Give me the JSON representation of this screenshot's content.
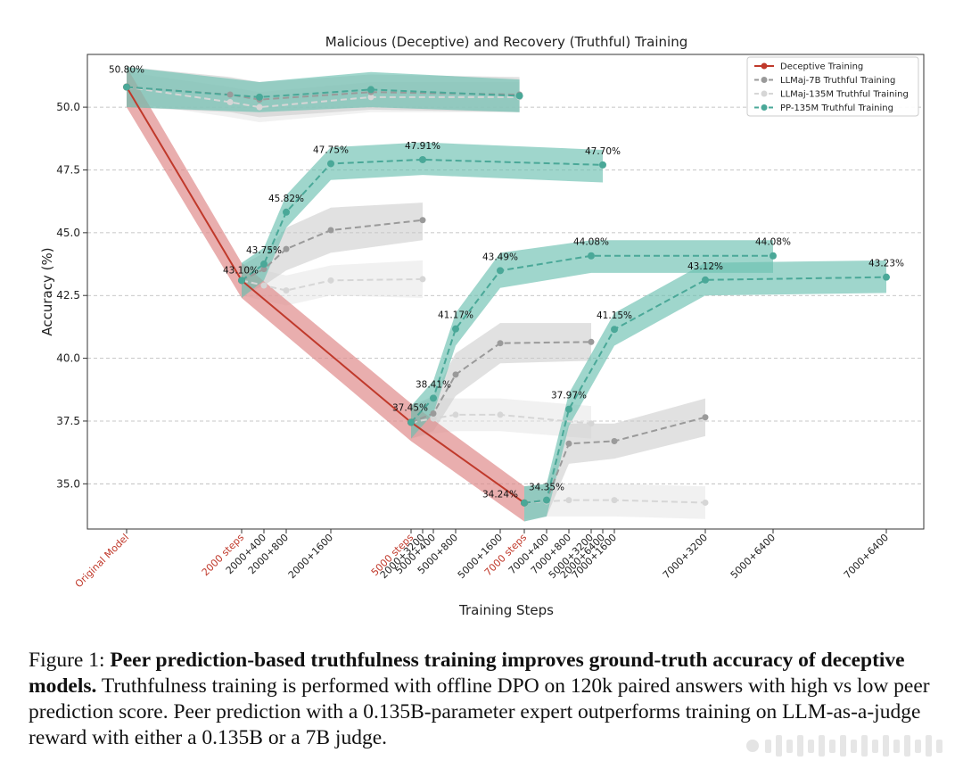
{
  "chart_data": {
    "type": "line",
    "title": "Malicious (Deceptive) and Recovery (Truthful) Training",
    "xlabel": "Training Steps",
    "ylabel": "Accuracy (%)",
    "ylim": [
      33.2,
      52.1
    ],
    "yticks": [
      35.0,
      37.5,
      40.0,
      42.5,
      45.0,
      47.5,
      50.0
    ],
    "grid": "horizontal dashed",
    "legend_position": "top-right",
    "x_ticks": [
      {
        "label": "Original Model",
        "highlight": true
      },
      {
        "label": "2000 steps",
        "highlight": true
      },
      {
        "label": "2000+400",
        "highlight": false
      },
      {
        "label": "2000+800",
        "highlight": false
      },
      {
        "label": "2000+1600",
        "highlight": false
      },
      {
        "label": "5000 steps",
        "highlight": true
      },
      {
        "label": "2000+3200",
        "highlight": false
      },
      {
        "label": "5000+400",
        "highlight": false
      },
      {
        "label": "5000+800",
        "highlight": false
      },
      {
        "label": "5000+1600",
        "highlight": false
      },
      {
        "label": "7000 steps",
        "highlight": true
      },
      {
        "label": "7000+400",
        "highlight": false
      },
      {
        "label": "7000+800",
        "highlight": false
      },
      {
        "label": "5000+3200",
        "highlight": false
      },
      {
        "label": "2000+6400",
        "highlight": false
      },
      {
        "label": "7000+1600",
        "highlight": false
      },
      {
        "label": "7000+3200",
        "highlight": false
      },
      {
        "label": "5000+6400",
        "highlight": false
      },
      {
        "label": "7000+6400",
        "highlight": false
      }
    ],
    "colors": {
      "deceptive": "#c0392b",
      "deceptive_band": "#e08c8c",
      "llmaj7b": "#9a9a9a",
      "llmaj7b_band": "#c8c8c8",
      "llmaj135": "#d6d6d6",
      "llmaj135_band": "#e6e6e6",
      "pp": "#4aa898",
      "pp_band": "#6cc0b0"
    },
    "series": [
      {
        "name": "Deceptive Training",
        "style": "solid",
        "color_key": "deceptive",
        "points": [
          {
            "x": "Original Model",
            "y": 50.8,
            "lo": 50.0,
            "hi": 51.6,
            "label": "50.80%"
          },
          {
            "x": "2000 steps",
            "y": 43.1,
            "lo": 42.4,
            "hi": 43.8,
            "label": "43.10%"
          },
          {
            "x": "5000 steps",
            "y": 37.45,
            "lo": 36.7,
            "hi": 38.2,
            "label": "37.45%"
          },
          {
            "x": "7000 steps",
            "y": 34.24,
            "lo": 33.5,
            "hi": 34.9,
            "label": "34.24%"
          }
        ]
      },
      {
        "name": "LLMaj-7B Truthful Training",
        "style": "dashed",
        "color_key": "llmaj7b",
        "groups": [
          [
            {
              "x": "Original Model",
              "y": 50.8,
              "lo": 50.0,
              "hi": 51.6
            },
            {
              "x": 0.9,
              "y": 50.5,
              "lo": 49.8,
              "hi": 51.2
            },
            {
              "x": 1.8,
              "y": 50.3,
              "lo": 49.6,
              "hi": 51.0
            },
            {
              "x": 4.5,
              "y": 50.6,
              "lo": 49.9,
              "hi": 51.3
            },
            {
              "x": 9.8,
              "y": 50.5,
              "lo": 49.8,
              "hi": 51.2
            }
          ],
          [
            {
              "x": "2000 steps",
              "y": 43.1,
              "lo": 42.5,
              "hi": 43.7
            },
            {
              "x": "2000+400",
              "y": 43.55,
              "lo": 42.9,
              "hi": 44.2
            },
            {
              "x": "2000+800",
              "y": 44.35,
              "lo": 43.5,
              "hi": 45.2
            },
            {
              "x": "2000+1600",
              "y": 45.1,
              "lo": 44.2,
              "hi": 46.0
            },
            {
              "x": "2000+3200",
              "y": 45.5,
              "lo": 44.7,
              "hi": 46.2
            }
          ],
          [
            {
              "x": "5000 steps",
              "y": 37.45,
              "lo": 36.8,
              "hi": 38.1
            },
            {
              "x": "5000+400",
              "y": 37.8,
              "lo": 37.1,
              "hi": 38.5
            },
            {
              "x": "5000+800",
              "y": 39.35,
              "lo": 38.5,
              "hi": 40.2
            },
            {
              "x": "5000+1600",
              "y": 40.6,
              "lo": 39.8,
              "hi": 41.4
            },
            {
              "x": "5000+3200",
              "y": 40.65,
              "lo": 39.9,
              "hi": 41.4
            }
          ],
          [
            {
              "x": "7000 steps",
              "y": 34.24,
              "lo": 33.5,
              "hi": 34.9
            },
            {
              "x": "7000+400",
              "y": 34.35,
              "lo": 33.7,
              "hi": 35.0
            },
            {
              "x": "7000+800",
              "y": 36.6,
              "lo": 35.8,
              "hi": 37.4
            },
            {
              "x": "7000+1600",
              "y": 36.7,
              "lo": 36.0,
              "hi": 37.4
            },
            {
              "x": "7000+3200",
              "y": 37.65,
              "lo": 36.9,
              "hi": 38.4
            }
          ]
        ]
      },
      {
        "name": "LLMaj-135M Truthful Training",
        "style": "dashed",
        "color_key": "llmaj135",
        "groups": [
          [
            {
              "x": "Original Model",
              "y": 50.8,
              "lo": 50.2,
              "hi": 51.4
            },
            {
              "x": 0.9,
              "y": 50.2,
              "lo": 49.6,
              "hi": 50.8
            },
            {
              "x": 1.8,
              "y": 50.0,
              "lo": 49.4,
              "hi": 50.6
            },
            {
              "x": 4.5,
              "y": 50.4,
              "lo": 49.8,
              "hi": 51.0
            },
            {
              "x": 9.8,
              "y": 50.4,
              "lo": 49.8,
              "hi": 51.0
            }
          ],
          [
            {
              "x": "2000 steps",
              "y": 43.1,
              "lo": 42.5,
              "hi": 43.7
            },
            {
              "x": "2000+400",
              "y": 42.9,
              "lo": 42.3,
              "hi": 43.5
            },
            {
              "x": "2000+800",
              "y": 42.7,
              "lo": 42.1,
              "hi": 43.3
            },
            {
              "x": "2000+1600",
              "y": 43.1,
              "lo": 42.5,
              "hi": 43.7
            },
            {
              "x": "2000+3200",
              "y": 43.15,
              "lo": 42.4,
              "hi": 43.9
            }
          ],
          [
            {
              "x": "5000 steps",
              "y": 37.45,
              "lo": 36.8,
              "hi": 38.1
            },
            {
              "x": "5000+400",
              "y": 37.6,
              "lo": 37.0,
              "hi": 38.4
            },
            {
              "x": "5000+800",
              "y": 37.75,
              "lo": 37.1,
              "hi": 38.4
            },
            {
              "x": "5000+1600",
              "y": 37.75,
              "lo": 37.1,
              "hi": 38.4
            },
            {
              "x": "5000+3200",
              "y": 37.4,
              "lo": 36.8,
              "hi": 38.1
            }
          ],
          [
            {
              "x": "7000 steps",
              "y": 34.24,
              "lo": 33.6,
              "hi": 34.9
            },
            {
              "x": "7000+400",
              "y": 34.3,
              "lo": 33.7,
              "hi": 34.9
            },
            {
              "x": "7000+800",
              "y": 34.35,
              "lo": 33.7,
              "hi": 35.0
            },
            {
              "x": "7000+1600",
              "y": 34.35,
              "lo": 33.7,
              "hi": 35.0
            },
            {
              "x": "7000+3200",
              "y": 34.25,
              "lo": 33.6,
              "hi": 34.9
            }
          ]
        ]
      },
      {
        "name": "PP-135M Truthful Training",
        "style": "dashed",
        "color_key": "pp",
        "groups": [
          [
            {
              "x": "Original Model",
              "y": 50.8,
              "lo": 50.0,
              "hi": 51.6
            },
            {
              "x": 1.8,
              "y": 50.4,
              "lo": 49.8,
              "hi": 51.0
            },
            {
              "x": 4.5,
              "y": 50.7,
              "lo": 50.0,
              "hi": 51.4
            },
            {
              "x": 9.8,
              "y": 50.45,
              "lo": 49.8,
              "hi": 51.1
            }
          ],
          [
            {
              "x": "2000 steps",
              "y": 43.1,
              "lo": 42.4,
              "hi": 43.8,
              "label": ""
            },
            {
              "x": "2000+400",
              "y": 43.75,
              "lo": 43.1,
              "hi": 44.4,
              "label": "43.75%"
            },
            {
              "x": "2000+800",
              "y": 45.82,
              "lo": 45.2,
              "hi": 46.5,
              "label": "45.82%"
            },
            {
              "x": "2000+1600",
              "y": 47.75,
              "lo": 47.1,
              "hi": 48.4,
              "label": "47.75%"
            },
            {
              "x": "2000+3200",
              "y": 47.91,
              "lo": 47.3,
              "hi": 48.6,
              "label": "47.91%"
            },
            {
              "x": "2000+6400",
              "y": 47.7,
              "lo": 47.0,
              "hi": 48.3,
              "label": "47.70%"
            }
          ],
          [
            {
              "x": "5000 steps",
              "y": 37.45,
              "lo": 36.8,
              "hi": 38.1,
              "label": ""
            },
            {
              "x": "5000+400",
              "y": 38.41,
              "lo": 37.8,
              "hi": 39.1,
              "label": "38.41%"
            },
            {
              "x": "5000+800",
              "y": 41.17,
              "lo": 40.5,
              "hi": 41.8,
              "label": "41.17%"
            },
            {
              "x": "5000+1600",
              "y": 43.49,
              "lo": 42.8,
              "hi": 44.2,
              "label": "43.49%"
            },
            {
              "x": "5000+3200",
              "y": 44.08,
              "lo": 43.4,
              "hi": 44.7,
              "label": "44.08%"
            },
            {
              "x": "5000+6400",
              "y": 44.08,
              "lo": 43.4,
              "hi": 44.7,
              "label": "44.08%"
            }
          ],
          [
            {
              "x": "7000 steps",
              "y": 34.24,
              "lo": 33.5,
              "hi": 34.9,
              "label": ""
            },
            {
              "x": "7000+400",
              "y": 34.35,
              "lo": 33.7,
              "hi": 35.0,
              "label": "34.35%"
            },
            {
              "x": "7000+800",
              "y": 37.97,
              "lo": 37.3,
              "hi": 38.6,
              "label": "37.97%"
            },
            {
              "x": "7000+1600",
              "y": 41.15,
              "lo": 40.5,
              "hi": 41.8,
              "label": "41.15%"
            },
            {
              "x": "7000+3200",
              "y": 43.12,
              "lo": 42.5,
              "hi": 43.8,
              "label": "43.12%"
            },
            {
              "x": "7000+6400",
              "y": 43.23,
              "lo": 42.6,
              "hi": 43.9,
              "label": "43.23%"
            }
          ]
        ]
      }
    ]
  },
  "caption": {
    "prefix": "Figure 1: ",
    "bold": "Peer prediction-based truthfulness training improves ground-truth accuracy of deceptive models.",
    "body": " Truthfulness training is performed with offline DPO on 120k paired answers with high vs low peer prediction score. Peer prediction with a 0.135B-parameter expert outperforms training on LLM-as-a-judge reward with either a 0.135B or a 7B judge."
  }
}
